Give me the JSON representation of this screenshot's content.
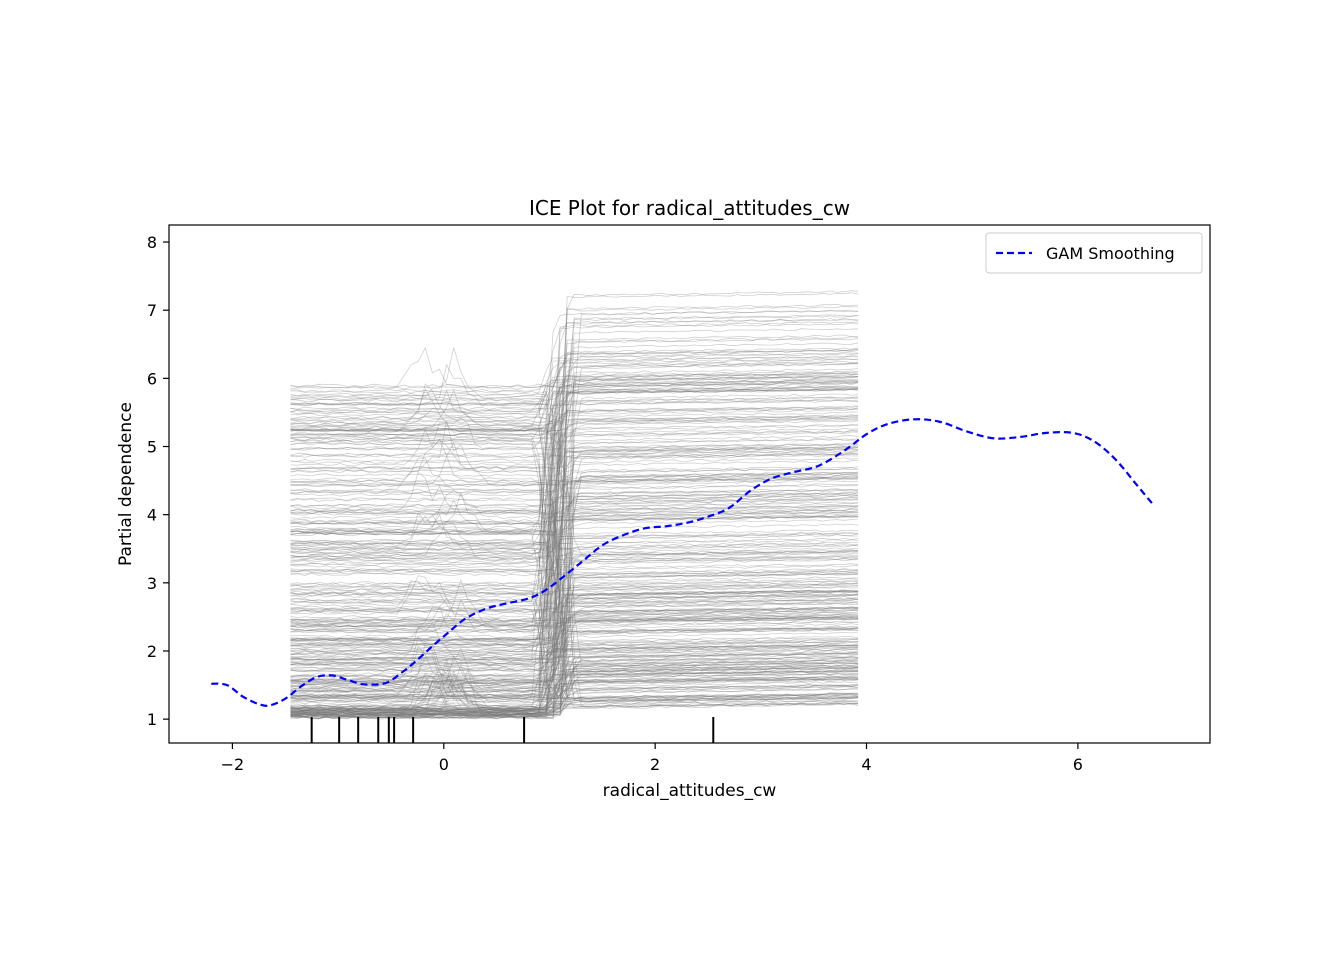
{
  "chart_data": {
    "type": "line",
    "title": "ICE Plot for radical_attitudes_cw",
    "xlabel": "radical_attitudes_cw",
    "ylabel": "Partial dependence",
    "xlim": [
      -2.6,
      7.25
    ],
    "ylim": [
      0.65,
      8.25
    ],
    "x_ticks": [
      -2,
      0,
      2,
      4,
      6
    ],
    "x_tick_labels": [
      "−2",
      "0",
      "2",
      "4",
      "6"
    ],
    "y_ticks": [
      1,
      2,
      3,
      4,
      5,
      6,
      7,
      8
    ],
    "y_tick_labels": [
      "1",
      "2",
      "3",
      "4",
      "5",
      "6",
      "7",
      "8"
    ],
    "grid": false,
    "legend": {
      "location": "upper right",
      "entries": [
        "GAM Smoothing"
      ]
    },
    "ice_curves": {
      "color": "#777777",
      "x_range": [
        -1.45,
        3.92
      ],
      "count_shown": "many",
      "y_range": [
        1.0,
        7.3
      ]
    },
    "rug_ticks_x": [
      -1.25,
      -0.99,
      -0.81,
      -0.62,
      -0.52,
      -0.47,
      -0.29,
      0.76,
      2.55
    ],
    "series": [
      {
        "name": "GAM Smoothing",
        "color": "#0000ff",
        "style": "dashed",
        "x": [
          -2.2,
          -2.05,
          -1.9,
          -1.75,
          -1.65,
          -1.5,
          -1.35,
          -1.2,
          -1.05,
          -0.9,
          -0.75,
          -0.55,
          -0.4,
          -0.25,
          -0.1,
          0.05,
          0.2,
          0.4,
          0.6,
          0.8,
          0.95,
          1.1,
          1.3,
          1.5,
          1.7,
          1.9,
          2.1,
          2.3,
          2.5,
          2.7,
          2.9,
          3.1,
          3.3,
          3.55,
          3.8,
          4.0,
          4.2,
          4.45,
          4.7,
          4.95,
          5.2,
          5.45,
          5.7,
          5.95,
          6.15,
          6.35,
          6.55,
          6.7
        ],
        "y": [
          1.52,
          1.5,
          1.33,
          1.22,
          1.2,
          1.3,
          1.48,
          1.62,
          1.64,
          1.57,
          1.51,
          1.53,
          1.68,
          1.87,
          2.08,
          2.28,
          2.47,
          2.62,
          2.7,
          2.77,
          2.88,
          3.05,
          3.3,
          3.55,
          3.7,
          3.8,
          3.83,
          3.88,
          3.97,
          4.1,
          4.35,
          4.53,
          4.62,
          4.72,
          4.95,
          5.18,
          5.33,
          5.4,
          5.36,
          5.22,
          5.12,
          5.14,
          5.2,
          5.2,
          5.08,
          4.82,
          4.45,
          4.17
        ]
      }
    ]
  }
}
